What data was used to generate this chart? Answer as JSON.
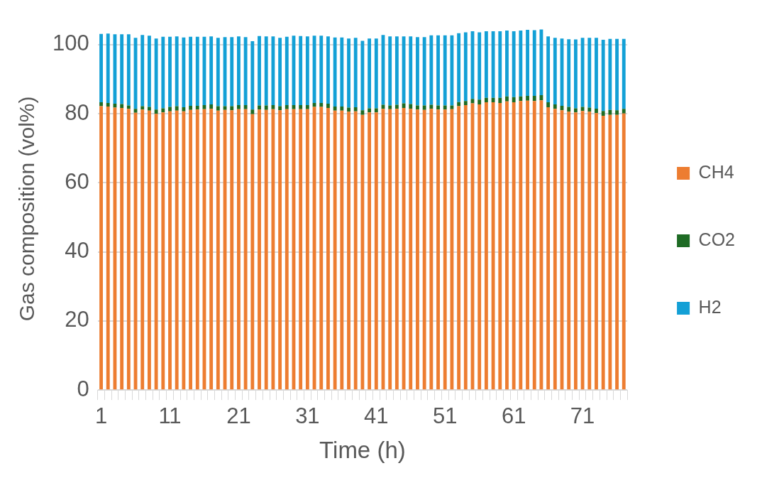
{
  "chart_data": {
    "type": "bar",
    "stacked": true,
    "xlabel": "Time (h)",
    "ylabel": "Gas composition (vol%)",
    "categories": [
      "1",
      null,
      null,
      null,
      null,
      null,
      null,
      null,
      null,
      null,
      "11",
      null,
      null,
      null,
      null,
      null,
      null,
      null,
      null,
      null,
      "21",
      null,
      null,
      null,
      null,
      null,
      null,
      null,
      null,
      null,
      "31",
      null,
      null,
      null,
      null,
      null,
      null,
      null,
      null,
      null,
      "41",
      null,
      null,
      null,
      null,
      null,
      null,
      null,
      null,
      null,
      "51",
      null,
      null,
      null,
      null,
      null,
      null,
      null,
      null,
      null,
      "61",
      null,
      null,
      null,
      null,
      null,
      null,
      null,
      null,
      null,
      "71",
      null,
      null,
      null,
      null,
      null,
      null
    ],
    "series": [
      {
        "name": "CH4",
        "color": "#ed7d31",
        "values": [
          82.2,
          82.1,
          81.8,
          81.7,
          81.4,
          80.3,
          81.2,
          80.9,
          80.0,
          80.4,
          80.7,
          80.9,
          80.7,
          81.1,
          81.2,
          81.3,
          81.4,
          80.9,
          81.1,
          81.0,
          81.3,
          81.3,
          79.9,
          81.2,
          81.1,
          81.3,
          81.0,
          81.3,
          81.3,
          81.3,
          81.3,
          82.0,
          82.0,
          81.7,
          80.9,
          80.9,
          80.6,
          80.7,
          79.7,
          80.4,
          80.4,
          81.4,
          81.3,
          81.4,
          81.7,
          81.4,
          81.2,
          81.1,
          81.4,
          81.2,
          81.2,
          81.3,
          82.2,
          82.5,
          83.0,
          82.7,
          83.3,
          83.3,
          83.1,
          83.6,
          83.3,
          83.7,
          83.8,
          83.7,
          83.9,
          81.9,
          81.4,
          81.0,
          80.6,
          80.4,
          80.8,
          80.6,
          80.2,
          79.4,
          79.7,
          79.7,
          80.1
        ]
      },
      {
        "name": "CO2",
        "color": "#1e6b24",
        "values": [
          1.1,
          1.0,
          1.1,
          1.1,
          1.0,
          1.1,
          1.0,
          1.1,
          1.2,
          1.2,
          1.3,
          1.3,
          1.2,
          1.2,
          1.1,
          1.2,
          1.3,
          1.3,
          1.1,
          1.2,
          1.2,
          1.2,
          1.3,
          1.2,
          1.3,
          1.2,
          1.2,
          1.2,
          1.2,
          1.2,
          1.2,
          1.1,
          1.1,
          1.2,
          1.2,
          1.2,
          1.2,
          1.2,
          1.3,
          1.2,
          1.2,
          1.2,
          1.1,
          1.2,
          1.3,
          1.4,
          1.2,
          1.3,
          1.2,
          1.2,
          1.2,
          1.1,
          1.2,
          1.2,
          1.3,
          1.4,
          1.3,
          1.3,
          1.5,
          1.4,
          1.5,
          1.3,
          1.4,
          1.5,
          1.5,
          1.4,
          1.3,
          1.3,
          1.4,
          1.2,
          1.2,
          1.2,
          1.3,
          1.4,
          1.4,
          1.3,
          1.3
        ]
      },
      {
        "name": "H2",
        "color": "#13a0d6",
        "values": [
          19.8,
          20.1,
          20.1,
          20.2,
          20.6,
          20.6,
          20.6,
          20.6,
          20.6,
          20.7,
          20.3,
          20.2,
          20.2,
          20.0,
          20.0,
          19.8,
          19.7,
          19.8,
          20.0,
          20.0,
          19.9,
          19.7,
          19.8,
          20.1,
          20.0,
          19.9,
          19.8,
          19.8,
          20.1,
          20.0,
          19.9,
          19.5,
          19.5,
          19.5,
          20.0,
          20.0,
          20.0,
          20.1,
          20.1,
          20.2,
          20.2,
          20.2,
          20.0,
          19.8,
          19.4,
          19.6,
          19.8,
          19.8,
          20.1,
          20.3,
          20.3,
          20.3,
          19.9,
          19.9,
          19.6,
          19.5,
          19.3,
          19.3,
          19.3,
          19.1,
          19.1,
          19.1,
          19.1,
          19.0,
          19.0,
          19.1,
          19.3,
          19.5,
          19.6,
          19.9,
          20.0,
          20.2,
          20.5,
          20.6,
          20.6,
          20.7,
          20.3
        ]
      }
    ],
    "ylim": [
      0,
      105
    ],
    "yticks": [
      0,
      20,
      40,
      60,
      80,
      100
    ],
    "grid": "y",
    "legend": "right"
  }
}
